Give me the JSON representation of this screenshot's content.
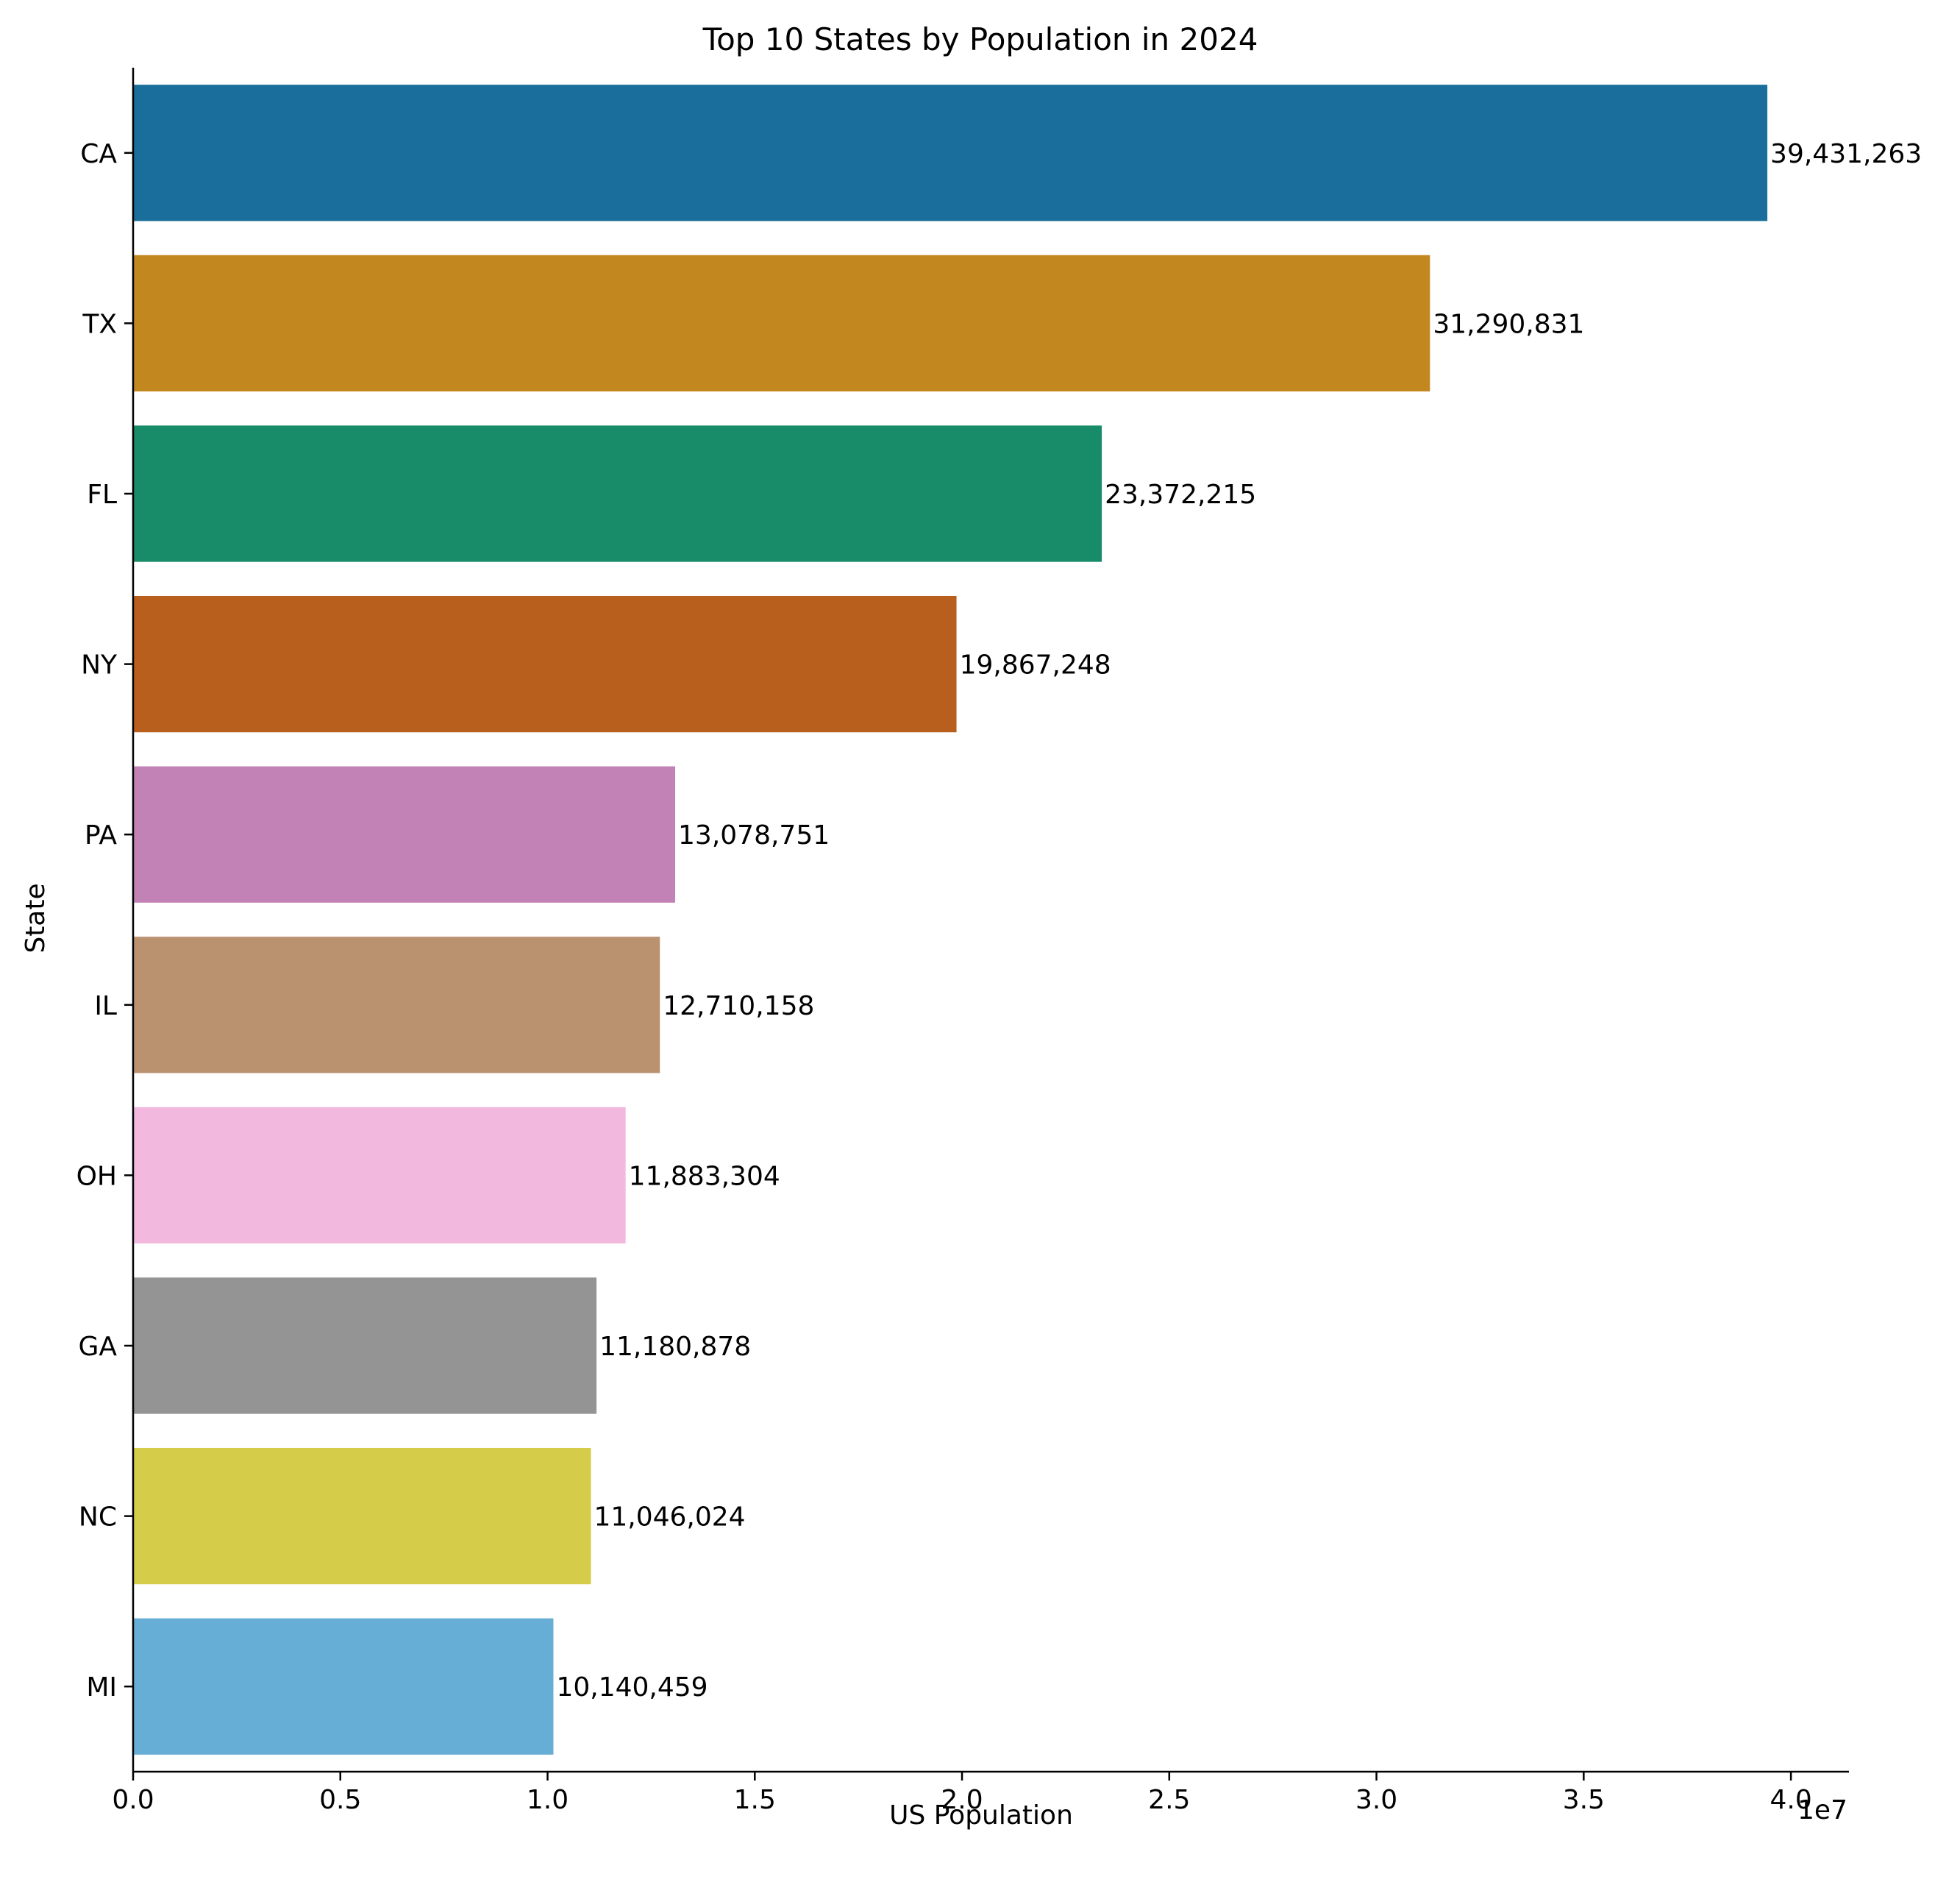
{
  "chart_data": {
    "type": "bar",
    "orientation": "horizontal",
    "title": "Top 10 States by Population in 2024",
    "xlabel": "US Population",
    "ylabel": "State",
    "x_offset_label": "1e7",
    "categories": [
      "CA",
      "TX",
      "FL",
      "NY",
      "PA",
      "IL",
      "OH",
      "GA",
      "NC",
      "MI"
    ],
    "values": [
      39431263,
      31290831,
      23372215,
      19867248,
      13078751,
      12710158,
      11883304,
      11180878,
      11046024,
      10140459
    ],
    "value_labels": [
      "39,431,263",
      "31,290,831",
      "23,372,215",
      "19,867,248",
      "13,078,751",
      "12,710,158",
      "11,883,304",
      "11,180,878",
      "11,046,024",
      "10,140,459"
    ],
    "colors": [
      "#1a6e9c",
      "#c3871f",
      "#188b69",
      "#b95f1d",
      "#c282b5",
      "#bb9270",
      "#f2b8de",
      "#949494",
      "#d5cc4a",
      "#66aed6"
    ],
    "xlim": [
      0,
      41400000
    ],
    "x_ticks": [
      0,
      5000000,
      10000000,
      15000000,
      20000000,
      25000000,
      30000000,
      35000000,
      40000000
    ],
    "x_tick_labels": [
      "0.0",
      "0.5",
      "1.0",
      "1.5",
      "2.0",
      "2.5",
      "3.0",
      "3.5",
      "4.0"
    ],
    "grid": false,
    "legend": "none"
  }
}
